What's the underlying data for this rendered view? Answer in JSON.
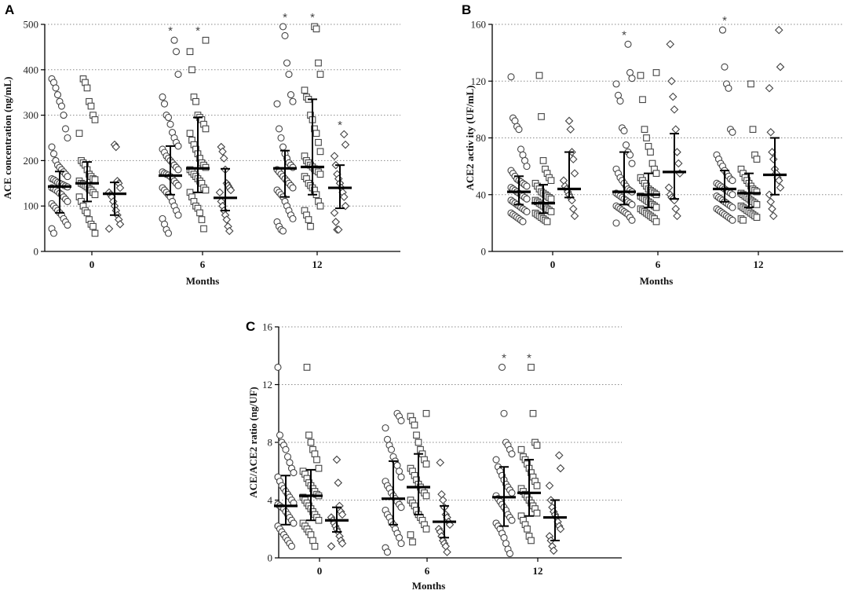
{
  "chart_data": [
    {
      "panel": "A",
      "type": "scatter",
      "ylabel": "ACE concentration (ng/mL)",
      "xlabel": "Months",
      "ylim": [
        0,
        500
      ],
      "yticks": [
        "0",
        "100",
        "200",
        "300",
        "400",
        "500"
      ],
      "groups": [
        "0",
        "6",
        "12"
      ],
      "series": [
        "circle",
        "square",
        "diamond"
      ],
      "stats": [
        {
          "median": 143,
          "low": 85,
          "high": 176
        },
        {
          "median": 150,
          "low": 110,
          "high": 197
        },
        {
          "median": 127,
          "low": 80,
          "high": 152
        },
        {
          "median": 167,
          "low": 125,
          "high": 232
        },
        {
          "median": 183,
          "low": 130,
          "high": 295
        },
        {
          "median": 118,
          "low": 90,
          "high": 182
        },
        {
          "median": 183,
          "low": 120,
          "high": 222
        },
        {
          "median": 186,
          "low": 125,
          "high": 335
        },
        {
          "median": 140,
          "low": 95,
          "high": 190
        }
      ],
      "points": [
        [
          380,
          372,
          360,
          345,
          330,
          320,
          300,
          270,
          250,
          230,
          215,
          200,
          190,
          185,
          180,
          175,
          170,
          165,
          160,
          158,
          155,
          152,
          150,
          148,
          146,
          144,
          142,
          140,
          138,
          135,
          132,
          128,
          125,
          120,
          115,
          110,
          105,
          100,
          95,
          90,
          85,
          80,
          72,
          65,
          58,
          50,
          40
        ],
        [
          380,
          372,
          360,
          330,
          320,
          300,
          290,
          260,
          200,
          195,
          190,
          180,
          170,
          165,
          160,
          158,
          155,
          150,
          148,
          145,
          142,
          138,
          135,
          130,
          125,
          120,
          110,
          100,
          90,
          85,
          70,
          60,
          55,
          40
        ],
        [
          235,
          230,
          155,
          150,
          140,
          130,
          125,
          120,
          110,
          100,
          90,
          80,
          70,
          60,
          50
        ],
        [
          465,
          440,
          390,
          340,
          325,
          300,
          295,
          280,
          262,
          250,
          240,
          232,
          225,
          218,
          210,
          205,
          200,
          195,
          190,
          185,
          180,
          175,
          172,
          170,
          168,
          165,
          160,
          155,
          150,
          145,
          140,
          135,
          130,
          125,
          120,
          110,
          100,
          90,
          80,
          72,
          60,
          48,
          40
        ],
        [
          465,
          440,
          400,
          340,
          330,
          300,
          295,
          290,
          280,
          270,
          260,
          245,
          235,
          225,
          215,
          205,
          195,
          190,
          185,
          180,
          175,
          170,
          165,
          160,
          155,
          150,
          140,
          135,
          130,
          120,
          110,
          100,
          95,
          85,
          70,
          50
        ],
        [
          230,
          220,
          205,
          180,
          150,
          145,
          140,
          135,
          130,
          110,
          100,
          90,
          80,
          70,
          55,
          45
        ],
        [
          495,
          475,
          415,
          390,
          345,
          330,
          325,
          270,
          250,
          230,
          215,
          205,
          195,
          190,
          185,
          180,
          175,
          170,
          165,
          160,
          155,
          150,
          145,
          140,
          135,
          130,
          125,
          120,
          110,
          100,
          90,
          80,
          72,
          65,
          55,
          48,
          45
        ],
        [
          495,
          490,
          415,
          390,
          355,
          340,
          335,
          300,
          290,
          270,
          260,
          240,
          220,
          210,
          200,
          195,
          190,
          186,
          182,
          178,
          175,
          170,
          165,
          160,
          150,
          145,
          140,
          135,
          125,
          110,
          100,
          90,
          80,
          70,
          55
        ],
        [
          258,
          235,
          210,
          190,
          170,
          160,
          150,
          140,
          130,
          120,
          100,
          85,
          65,
          48,
          48
        ]
      ],
      "significant": [
        false,
        false,
        false,
        true,
        true,
        false,
        true,
        true,
        true
      ]
    },
    {
      "panel": "B",
      "type": "scatter",
      "ylabel": "ACE2 activ ity (UF/mL)",
      "xlabel": "Months",
      "ylim": [
        0,
        160
      ],
      "yticks": [
        "0",
        "40",
        "80",
        "120",
        "160"
      ],
      "groups": [
        "0",
        "6",
        "12"
      ],
      "series": [
        "circle",
        "square",
        "diamond"
      ],
      "stats": [
        {
          "median": 42,
          "low": 33,
          "high": 53
        },
        {
          "median": 34,
          "low": 27,
          "high": 47
        },
        {
          "median": 44,
          "low": 38,
          "high": 70
        },
        {
          "median": 42,
          "low": 33,
          "high": 70
        },
        {
          "median": 40,
          "low": 31,
          "high": 55
        },
        {
          "median": 56,
          "low": 37,
          "high": 83
        },
        {
          "median": 44,
          "low": 35,
          "high": 57
        },
        {
          "median": 41,
          "low": 31,
          "high": 55
        },
        {
          "median": 54,
          "low": 40,
          "high": 80
        }
      ],
      "points": [
        [
          123,
          94,
          92,
          88,
          86,
          72,
          68,
          64,
          60,
          57,
          55,
          53,
          51,
          50,
          49,
          48,
          47,
          46,
          45,
          44,
          43,
          42,
          41,
          40,
          39,
          38,
          37,
          36,
          35,
          34,
          33,
          32,
          31,
          30,
          29,
          28,
          27,
          26,
          25,
          24,
          23,
          22,
          21
        ],
        [
          124,
          95,
          64,
          58,
          55,
          52,
          50,
          48,
          46,
          44,
          42,
          41,
          40,
          39,
          38,
          37,
          36,
          35,
          34,
          33,
          32,
          31,
          30,
          29,
          28,
          27,
          26,
          25,
          24,
          23,
          22,
          21
        ],
        [
          92,
          86,
          70,
          65,
          55,
          50,
          46,
          44,
          42,
          40,
          38,
          36,
          30,
          25
        ],
        [
          146,
          126,
          122,
          118,
          110,
          106,
          87,
          85,
          75,
          70,
          68,
          62,
          58,
          55,
          52,
          50,
          48,
          46,
          44,
          43,
          42,
          41,
          40,
          39,
          38,
          37,
          36,
          35,
          34,
          33,
          32,
          31,
          30,
          29,
          28,
          27,
          26,
          24,
          22,
          20
        ],
        [
          126,
          124,
          107,
          86,
          80,
          74,
          70,
          62,
          58,
          55,
          52,
          50,
          48,
          46,
          44,
          43,
          42,
          41,
          40,
          39,
          38,
          37,
          36,
          35,
          34,
          33,
          32,
          31,
          30,
          29,
          28,
          27,
          26,
          25,
          24,
          23,
          21
        ],
        [
          146,
          120,
          109,
          100,
          86,
          70,
          62,
          55,
          45,
          40,
          38,
          37,
          36,
          30,
          25
        ],
        [
          156,
          130,
          118,
          115,
          86,
          84,
          68,
          65,
          62,
          60,
          57,
          55,
          53,
          51,
          50,
          48,
          47,
          46,
          45,
          44,
          43,
          42,
          41,
          40,
          39,
          38,
          37,
          36,
          35,
          34,
          33,
          32,
          31,
          30,
          29,
          28,
          27,
          26,
          25,
          24,
          23,
          22
        ],
        [
          118,
          86,
          68,
          65,
          58,
          55,
          52,
          50,
          48,
          46,
          44,
          43,
          42,
          41,
          40,
          39,
          38,
          37,
          36,
          35,
          34,
          33,
          32,
          31,
          30,
          29,
          28,
          27,
          26,
          25,
          24,
          23,
          22
        ],
        [
          156,
          130,
          115,
          84,
          70,
          65,
          58,
          55,
          52,
          50,
          45,
          40,
          35,
          30,
          25
        ]
      ],
      "significant": [
        false,
        false,
        false,
        true,
        false,
        false,
        true,
        false,
        false
      ]
    },
    {
      "panel": "C",
      "type": "scatter",
      "ylabel": "ACE/ACE2 ratio (ng/UF)",
      "xlabel": "Months",
      "ylim": [
        0,
        16
      ],
      "yticks": [
        "0",
        "4",
        "8",
        "12",
        "16"
      ],
      "groups": [
        "0",
        "6",
        "12"
      ],
      "series": [
        "circle",
        "square",
        "diamond"
      ],
      "stats": [
        {
          "median": 3.6,
          "low": 2.3,
          "high": 5.7
        },
        {
          "median": 4.3,
          "low": 2.6,
          "high": 6.1
        },
        {
          "median": 2.6,
          "low": 1.8,
          "high": 3.5
        },
        {
          "median": 4.1,
          "low": 2.3,
          "high": 6.7
        },
        {
          "median": 4.9,
          "low": 3.0,
          "high": 7.2
        },
        {
          "median": 2.5,
          "low": 1.4,
          "high": 3.6
        },
        {
          "median": 4.2,
          "low": 2.2,
          "high": 6.3
        },
        {
          "median": 4.5,
          "low": 2.9,
          "high": 6.8
        },
        {
          "median": 2.8,
          "low": 1.2,
          "high": 4.0
        }
      ],
      "points": [
        [
          13.2,
          8.5,
          8.0,
          7.8,
          7.5,
          7.0,
          6.6,
          6.2,
          5.9,
          5.6,
          5.3,
          5.0,
          4.8,
          4.6,
          4.4,
          4.2,
          4.0,
          3.8,
          3.7,
          3.6,
          3.5,
          3.4,
          3.2,
          3.0,
          2.8,
          2.6,
          2.4,
          2.2,
          2.0,
          1.8,
          1.6,
          1.4,
          1.2,
          1.0,
          0.8
        ],
        [
          13.2,
          8.5,
          8.0,
          7.5,
          7.2,
          6.8,
          6.2,
          6.0,
          5.8,
          5.5,
          5.2,
          5.0,
          4.8,
          4.6,
          4.4,
          4.3,
          4.2,
          4.0,
          3.8,
          3.6,
          3.4,
          3.2,
          3.0,
          2.8,
          2.6,
          2.4,
          2.2,
          2.0,
          1.8,
          1.6,
          1.2,
          0.8
        ],
        [
          6.8,
          5.2,
          3.6,
          3.2,
          3.0,
          2.8,
          2.6,
          2.4,
          2.2,
          2.0,
          1.8,
          1.5,
          1.2,
          1.0,
          0.8
        ],
        [
          10.0,
          9.8,
          9.5,
          9.0,
          8.2,
          7.8,
          7.5,
          7.0,
          6.7,
          6.4,
          6.0,
          5.6,
          5.3,
          5.0,
          4.8,
          4.5,
          4.3,
          4.1,
          3.9,
          3.7,
          3.5,
          3.3,
          3.0,
          2.8,
          2.5,
          2.3,
          2.0,
          1.7,
          1.4,
          1.0,
          0.7,
          0.4
        ],
        [
          10.0,
          9.8,
          9.5,
          9.2,
          8.5,
          8.0,
          7.5,
          7.2,
          6.8,
          6.5,
          6.2,
          6.0,
          5.7,
          5.4,
          5.1,
          4.9,
          4.7,
          4.5,
          4.3,
          4.0,
          3.8,
          3.6,
          3.3,
          3.0,
          2.8,
          2.6,
          2.3,
          2.0,
          1.6,
          1.1
        ],
        [
          6.6,
          4.4,
          4.0,
          3.5,
          3.0,
          2.8,
          2.5,
          2.3,
          2.0,
          1.8,
          1.5,
          1.2,
          1.0,
          0.8,
          0.4
        ],
        [
          13.2,
          10.0,
          8.0,
          7.8,
          7.5,
          7.2,
          6.8,
          6.3,
          6.0,
          5.7,
          5.4,
          5.1,
          4.9,
          4.7,
          4.5,
          4.3,
          4.1,
          3.9,
          3.7,
          3.5,
          3.3,
          3.0,
          2.8,
          2.6,
          2.4,
          2.2,
          2.0,
          1.7,
          1.4,
          1.0,
          0.6,
          0.3
        ],
        [
          13.2,
          10.0,
          8.0,
          7.8,
          7.5,
          7.0,
          6.8,
          6.5,
          6.2,
          5.9,
          5.6,
          5.3,
          5.0,
          4.8,
          4.6,
          4.4,
          4.2,
          4.0,
          3.8,
          3.6,
          3.4,
          3.1,
          2.9,
          2.6,
          2.3,
          2.0,
          1.5,
          1.2
        ],
        [
          7.1,
          6.2,
          5.0,
          4.0,
          3.5,
          3.2,
          3.0,
          2.8,
          2.5,
          2.2,
          2.0,
          1.5,
          1.2,
          0.8,
          0.5
        ]
      ],
      "significant": [
        false,
        false,
        false,
        false,
        false,
        false,
        true,
        true,
        false
      ]
    }
  ],
  "significance_mark": "*"
}
